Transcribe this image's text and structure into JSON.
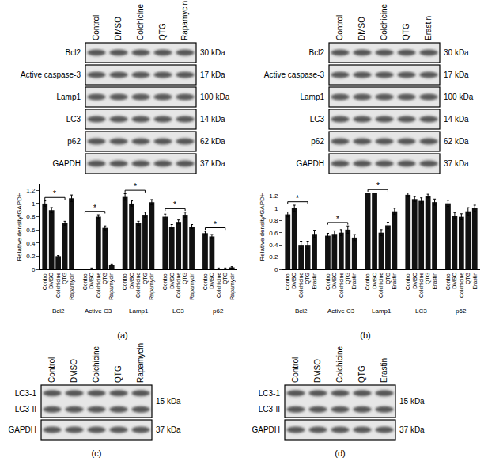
{
  "chart_data": [
    {
      "type": "bar",
      "ylabel": "Relative density/GAPDH",
      "categories": [
        "Bcl2",
        "Active C3",
        "Lamp1",
        "LC3",
        "p62"
      ],
      "color": "#111111",
      "series": [
        {
          "name": "Control",
          "values": [
            1.0,
            0.0,
            1.1,
            0.8,
            0.55
          ],
          "errors": [
            0.04,
            0.0,
            0.05,
            0.04,
            0.03
          ]
        },
        {
          "name": "DMSO",
          "values": [
            0.9,
            0.01,
            1.0,
            0.65,
            0.5
          ],
          "errors": [
            0.04,
            0.01,
            0.04,
            0.03,
            0.03
          ]
        },
        {
          "name": "Colchicine",
          "values": [
            0.2,
            0.8,
            0.7,
            0.72,
            0.01
          ],
          "errors": [
            0.01,
            0.03,
            0.03,
            0.03,
            0.01
          ]
        },
        {
          "name": "QTG",
          "values": [
            0.7,
            0.63,
            0.83,
            0.83,
            0.01
          ],
          "errors": [
            0.03,
            0.03,
            0.04,
            0.04,
            0.01
          ]
        },
        {
          "name": "Rapamycin",
          "values": [
            1.08,
            0.07,
            1.02,
            0.65,
            0.03
          ],
          "errors": [
            0.05,
            0.01,
            0.04,
            0.03,
            0.01
          ]
        }
      ],
      "ylim": [
        0,
        1.3
      ],
      "yticks": [
        0,
        0.2,
        0.4,
        0.6,
        0.8,
        1,
        1.2
      ],
      "grid": false,
      "significance": [
        {
          "group": "Bcl2",
          "from": "Control",
          "to": "QTG",
          "label": "*"
        },
        {
          "group": "Active C3",
          "from": "Control",
          "to": "QTG",
          "label": "*"
        },
        {
          "group": "Lamp1",
          "from": "Control",
          "to": "QTG",
          "label": "*"
        },
        {
          "group": "LC3",
          "from": "Control",
          "to": "QTG",
          "label": "*"
        },
        {
          "group": "p62",
          "from": "Control",
          "to": "QTG",
          "label": "*"
        }
      ]
    },
    {
      "type": "bar",
      "ylabel": "Relative density/GAPDH",
      "categories": [
        "Bcl2",
        "Active C3",
        "Lamp1",
        "LC3",
        "p62"
      ],
      "color": "#111111",
      "series": [
        {
          "name": "Control",
          "values": [
            0.9,
            0.55,
            1.25,
            1.22,
            1.08
          ],
          "errors": [
            0.04,
            0.04,
            0.0,
            0.03,
            0.05
          ]
        },
        {
          "name": "DMSO",
          "values": [
            1.0,
            0.58,
            1.25,
            1.15,
            0.88
          ],
          "errors": [
            0.05,
            0.05,
            0.0,
            0.04,
            0.05
          ]
        },
        {
          "name": "Colchicine",
          "values": [
            0.4,
            0.6,
            0.6,
            1.12,
            0.86
          ],
          "errors": [
            0.06,
            0.05,
            0.05,
            0.05,
            0.05
          ]
        },
        {
          "name": "QTG",
          "values": [
            0.4,
            0.65,
            0.72,
            1.2,
            0.95
          ],
          "errors": [
            0.06,
            0.06,
            0.05,
            0.03,
            0.06
          ]
        },
        {
          "name": "Erastin",
          "values": [
            0.58,
            0.52,
            0.95,
            1.1,
            1.0
          ],
          "errors": [
            0.06,
            0.05,
            0.05,
            0.05,
            0.05
          ]
        }
      ],
      "ylim": [
        0,
        1.4
      ],
      "yticks": [
        0,
        0.2,
        0.4,
        0.6,
        0.8,
        1,
        1.2
      ],
      "grid": false,
      "significance": [
        {
          "group": "Bcl2",
          "from": "Control",
          "to": "QTG",
          "label": "*"
        },
        {
          "group": "Active C3",
          "from": "Control",
          "to": "QTG",
          "label": "*"
        },
        {
          "group": "Lamp1",
          "from": "Control",
          "to": "QTG",
          "label": "*"
        }
      ]
    }
  ],
  "blots": [
    {
      "lanes": [
        "Control",
        "DMSO",
        "Colchicine",
        "QTG",
        "Rapamycin"
      ],
      "rows": [
        {
          "labels": [
            "Bcl2"
          ],
          "kda": "30 kDa"
        },
        {
          "labels": [
            "Active caspase-3"
          ],
          "kda": "17 kDa"
        },
        {
          "labels": [
            "Lamp1"
          ],
          "kda": "100 kDa"
        },
        {
          "labels": [
            "LC3"
          ],
          "kda": "14 kDa"
        },
        {
          "labels": [
            "p62"
          ],
          "kda": "62 kDa"
        },
        {
          "labels": [
            "GAPDH"
          ],
          "kda": "37 kDa"
        }
      ]
    },
    {
      "lanes": [
        "Control",
        "DMSO",
        "Colchicine",
        "QTG",
        "Erastin"
      ],
      "rows": [
        {
          "labels": [
            "Bcl2"
          ],
          "kda": "30 kDa"
        },
        {
          "labels": [
            "Active caspase-3"
          ],
          "kda": "17 kDa"
        },
        {
          "labels": [
            "Lamp1"
          ],
          "kda": "100 kDa"
        },
        {
          "labels": [
            "LC3"
          ],
          "kda": "14 kDa"
        },
        {
          "labels": [
            "p62"
          ],
          "kda": "62 kDa"
        },
        {
          "labels": [
            "GAPDH"
          ],
          "kda": "37 kDa"
        }
      ]
    },
    {
      "lanes": [
        "Control",
        "DMSO",
        "Colchicine",
        "QTG",
        "Rapamycin"
      ],
      "rows": [
        {
          "labels": [
            "LC3-1",
            "LC3-II"
          ],
          "kda": "15 kDa"
        },
        {
          "labels": [
            "GAPDH"
          ],
          "kda": "37 kDa"
        }
      ]
    },
    {
      "lanes": [
        "Control",
        "DMSO",
        "Colchicine",
        "QTG",
        "Erastin"
      ],
      "rows": [
        {
          "labels": [
            "LC3-1",
            "LC3-II"
          ],
          "kda": "15 kDa"
        },
        {
          "labels": [
            "GAPDH"
          ],
          "kda": "37 kDa"
        }
      ]
    }
  ],
  "panel_labels": [
    "(a)",
    "(b)",
    "(c)",
    "(d)"
  ]
}
